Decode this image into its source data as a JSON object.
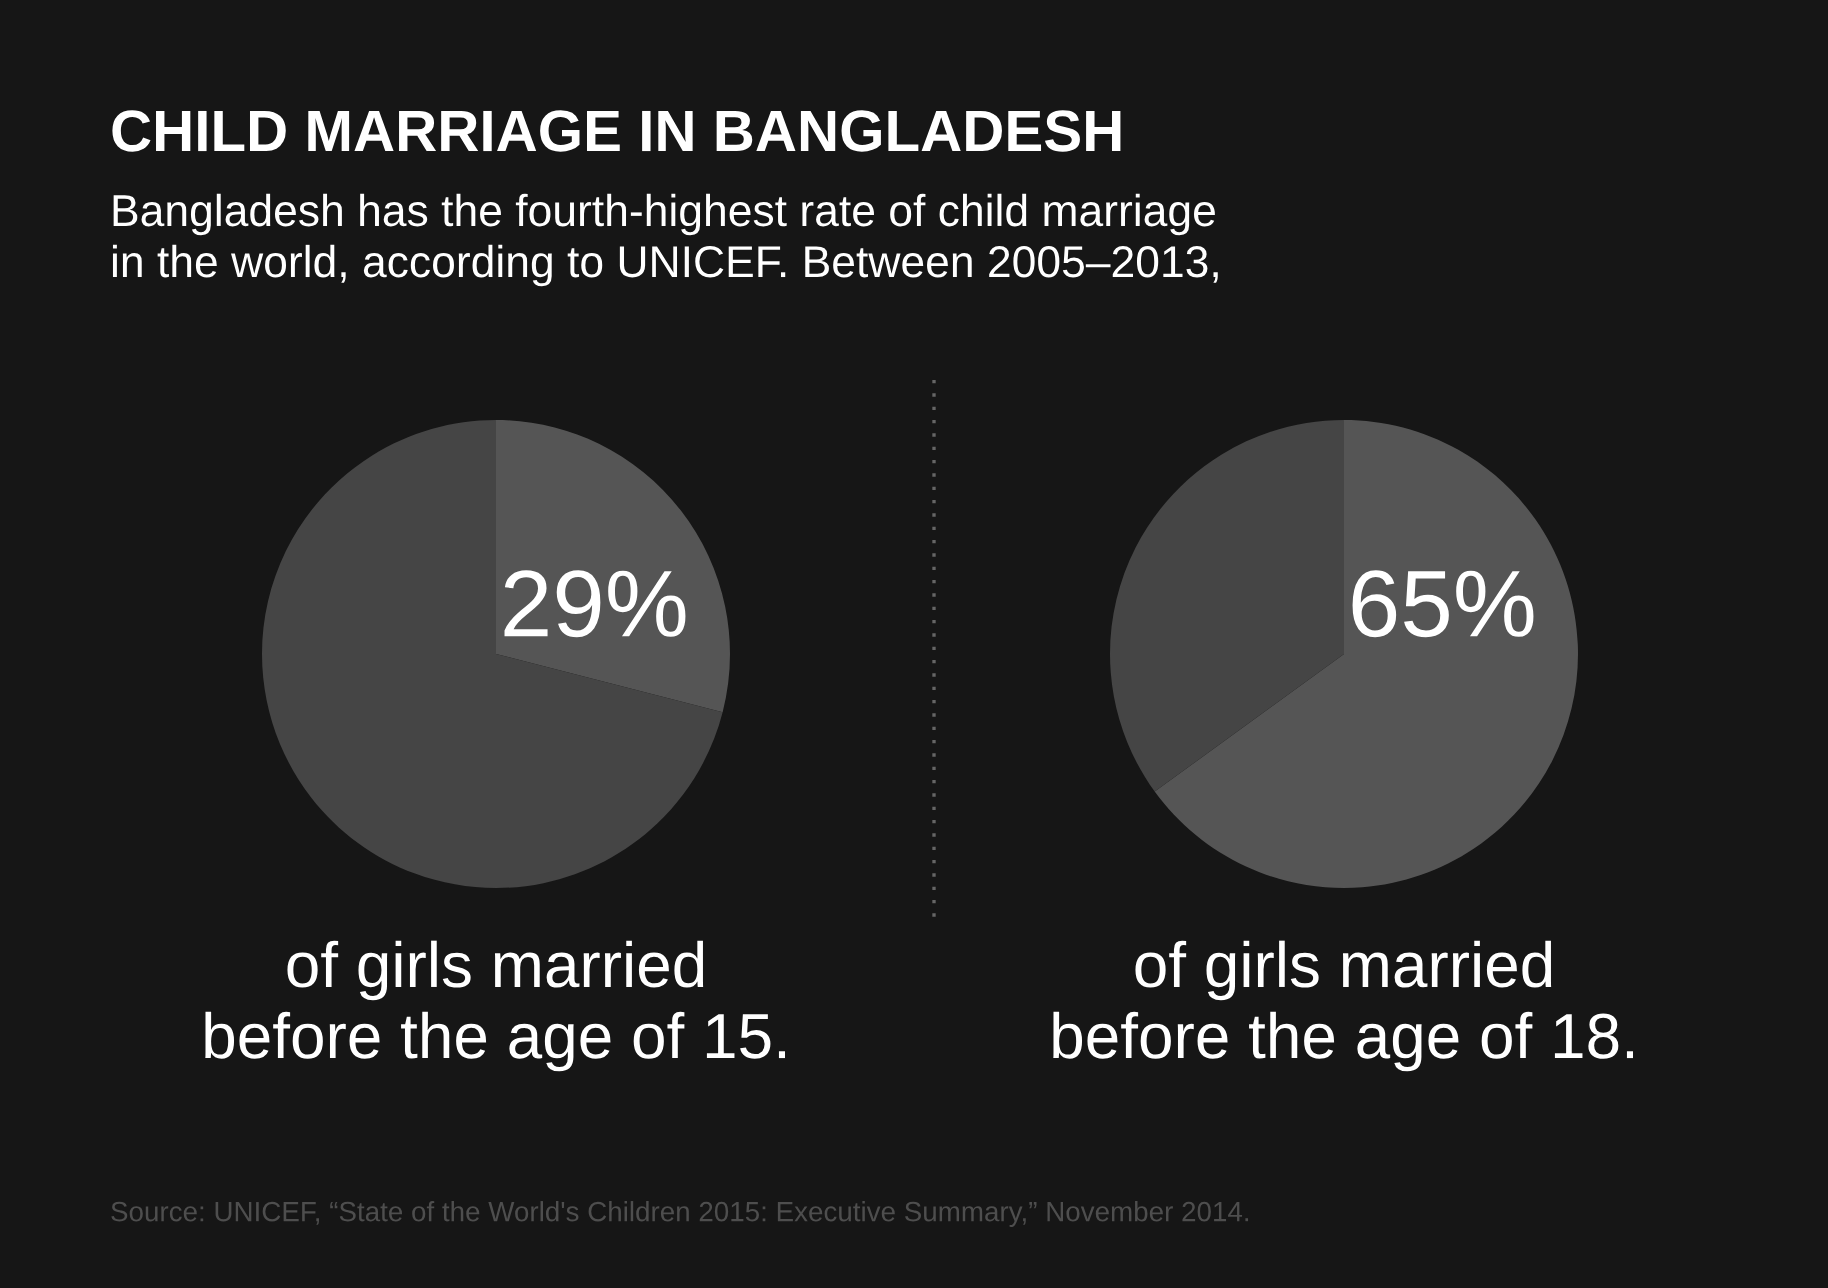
{
  "chart_data": [
    {
      "type": "pie",
      "title": "CHILD MARRIAGE IN BANGLADESH",
      "subtitle": "Bangladesh has the fourth-highest rate of child marriage\nin the world, according to UNICEF. Between 2005–2013,",
      "categories": [
        null,
        null
      ],
      "values": [
        29,
        71
      ],
      "colors": [
        "#555555",
        "#454545"
      ],
      "value_labels": [
        "29%",
        null
      ],
      "annotations": [
        "of girls married\nbefore the age of 15."
      ]
    },
    {
      "type": "pie",
      "categories": [
        null,
        null
      ],
      "values": [
        65,
        35
      ],
      "colors": [
        "#555555",
        "#454545"
      ],
      "value_labels": [
        "65%",
        null
      ],
      "annotations": [
        "of girls married\nbefore the age of 18.",
        "Source: UNICEF, “State of the World's Children 2015: Executive Summary,” November 2014."
      ]
    }
  ]
}
